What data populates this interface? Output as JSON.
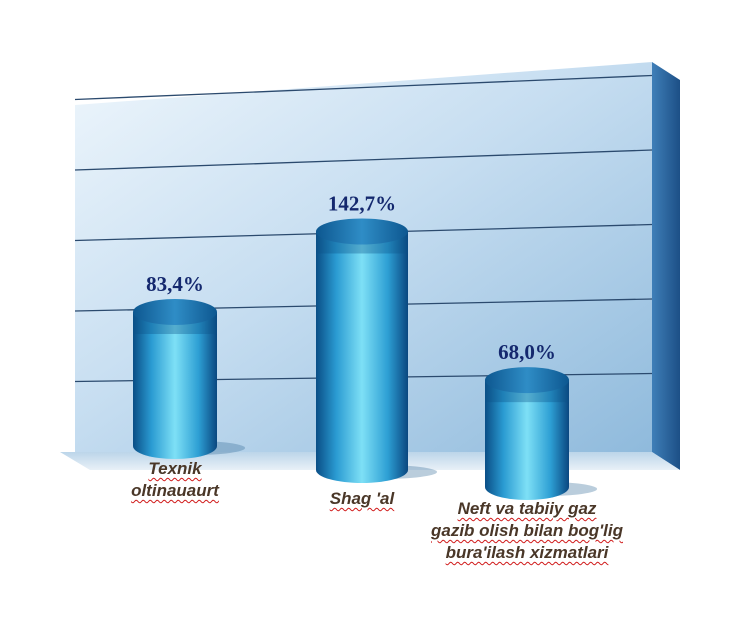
{
  "chart_data": {
    "type": "bar",
    "title": "",
    "xlabel": "",
    "ylabel": "",
    "categories": [
      "Texnik oltinauaurt",
      "Shag 'al",
      "Neft va tabiiy gaz gazib olish bilan bog'lig bura'ilash xizmatlari"
    ],
    "category_lines": [
      [
        "Texnik",
        "oltinauaurt"
      ],
      [
        "Shag 'al"
      ],
      [
        "Neft va tabiiy gaz",
        "gazib olish bilan bog'lig",
        "bura'ilash xizmatlari"
      ]
    ],
    "values": [
      83.4,
      142.7,
      68.0
    ],
    "value_labels": [
      "83,4%",
      "142,7%",
      "68,0%"
    ],
    "ylim": [
      0,
      160
    ],
    "grid": true,
    "legend": "none",
    "colors": {
      "bar_top": "#1d6fa8",
      "bar_light": "#6fd3f0",
      "bar_dark": "#0b4f86",
      "wall_light": "#e4f0fa",
      "wall_mid": "#b4d2ea",
      "wall_dark": "#7eaed3",
      "value_text": "#14286e",
      "category_text": "#4a3728"
    }
  }
}
